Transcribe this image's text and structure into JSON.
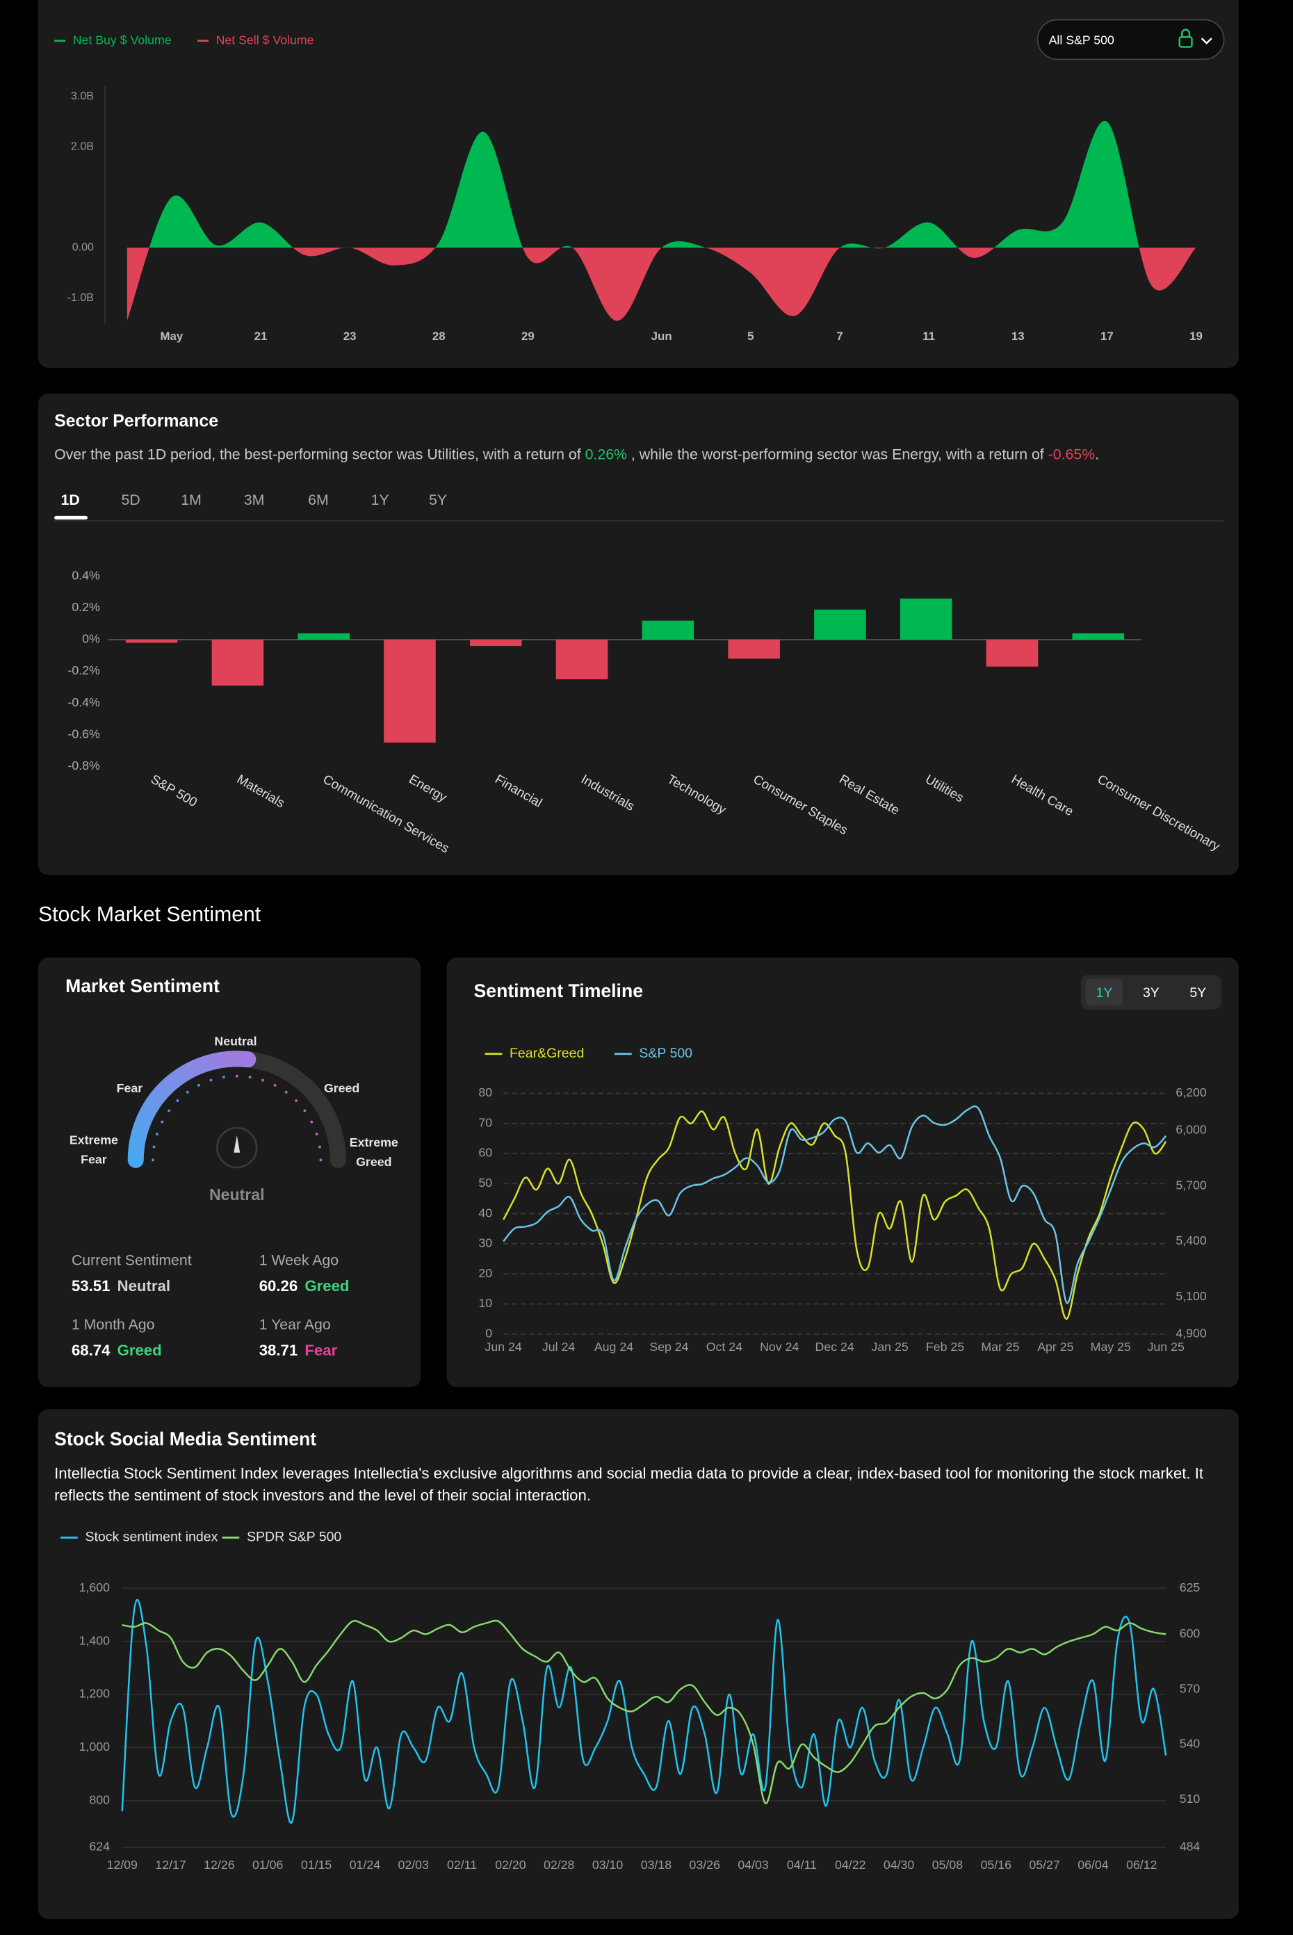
{
  "ui": {
    "dropdown": "All S&P 500",
    "section_title": "Stock Market Sentiment"
  },
  "chart_data": [
    {
      "type": "area",
      "legend": [
        {
          "name": "Net Buy $ Volume",
          "color": "#00b852"
        },
        {
          "name": "Net Sell $ Volume",
          "color": "#e04358"
        }
      ],
      "categories": [
        null,
        "May",
        null,
        "21",
        null,
        "23",
        null,
        "28",
        null,
        "29",
        null,
        null,
        "Jun",
        null,
        "5",
        null,
        "7",
        null,
        "11",
        null,
        "13",
        null,
        "17",
        null,
        "19"
      ],
      "values": [
        -1.45,
        1.0,
        0.05,
        0.5,
        -0.15,
        0,
        -0.35,
        0.1,
        2.3,
        -0.2,
        0,
        -1.45,
        0,
        0,
        -0.5,
        -1.35,
        0,
        0,
        0.5,
        -0.2,
        0.35,
        0.5,
        2.5,
        -0.75,
        0
      ],
      "ylim": [
        -1.5,
        3.2
      ],
      "yticks": [
        {
          "value": 3,
          "label": "3.0B"
        },
        {
          "value": 2,
          "label": "2.0B"
        },
        {
          "value": 0,
          "label": "0.00"
        },
        {
          "value": -1,
          "label": "-1.0B"
        }
      ]
    },
    {
      "type": "bar",
      "title": "Sector Performance",
      "description": [
        {
          "text": "Over the past 1D period, the best-performing sector was Utilities, with a return of "
        },
        {
          "text": "0.26%",
          "color": "#1ec26a"
        },
        {
          "text": " , while the worst-performing sector was Energy, with a return of "
        },
        {
          "text": "-0.65%",
          "color": "#e04358"
        },
        {
          "text": "."
        }
      ],
      "tabs": [
        "1D",
        "5D",
        "1M",
        "3M",
        "6M",
        "1Y",
        "5Y"
      ],
      "active_tab": "1D",
      "categories": [
        "S&P 500",
        "Materials",
        "Communication Services",
        "Energy",
        "Financial",
        "Industrials",
        "Technology",
        "Consumer Staples",
        "Real Estate",
        "Utilities",
        "Health Care",
        "Consumer Discretionary"
      ],
      "values": [
        -0.02,
        -0.29,
        0.04,
        -0.65,
        -0.04,
        -0.25,
        0.12,
        -0.12,
        0.19,
        0.26,
        -0.17,
        0.04
      ],
      "positive_color": "#00b852",
      "negative_color": "#e04358",
      "ylim": [
        -0.8,
        0.4
      ],
      "yticks": [
        {
          "value": 0.4,
          "label": "0.4%"
        },
        {
          "value": 0.2,
          "label": "0.2%"
        },
        {
          "value": 0,
          "label": "0%"
        },
        {
          "value": -0.2,
          "label": "-0.2%"
        },
        {
          "value": -0.4,
          "label": "-0.4%"
        },
        {
          "value": -0.6,
          "label": "-0.6%"
        },
        {
          "value": -0.8,
          "label": "-0.8%"
        }
      ]
    },
    {
      "type": "gauge",
      "title": "Market Sentiment",
      "lim": [
        0,
        100
      ],
      "zones": [
        "Extreme Fear",
        "Fear",
        "Neutral",
        "Greed",
        "Extreme Greed"
      ],
      "reading": "Neutral",
      "stats": [
        {
          "label": "Current Sentiment",
          "value": 53.51,
          "status": "Neutral",
          "color": "#cfcfcf"
        },
        {
          "label": "1 Week Ago",
          "value": 60.26,
          "status": "Greed",
          "color": "#3fd27a"
        },
        {
          "label": "1 Month Ago",
          "value": 68.74,
          "status": "Greed",
          "color": "#3fd27a"
        },
        {
          "label": "1 Year Ago",
          "value": 38.71,
          "status": "Fear",
          "color": "#e8409a"
        }
      ]
    },
    {
      "type": "line",
      "title": "Sentiment Timeline",
      "ranges": [
        "1Y",
        "3Y",
        "5Y"
      ],
      "active_range": "1Y",
      "grid": "dashed",
      "categories": [
        "Jun 24",
        null,
        null,
        null,
        null,
        "Jul 24",
        null,
        null,
        null,
        null,
        "Aug 24",
        null,
        null,
        null,
        null,
        "Sep 24",
        null,
        null,
        null,
        null,
        "Oct 24",
        null,
        null,
        null,
        null,
        "Nov 24",
        null,
        null,
        null,
        null,
        "Dec 24",
        null,
        null,
        null,
        null,
        "Jan 25",
        null,
        null,
        null,
        null,
        "Feb 25",
        null,
        null,
        null,
        null,
        "Mar 25",
        null,
        null,
        null,
        null,
        "Apr 25",
        null,
        null,
        null,
        null,
        "May 25",
        null,
        null,
        null,
        null,
        "Jun 25"
      ],
      "series": [
        {
          "name": "Fear&Greed",
          "color": "#d8e02a",
          "values": [
            38,
            45,
            52,
            48,
            55,
            50,
            58,
            47,
            40,
            30,
            17,
            25,
            38,
            52,
            58,
            62,
            72,
            70,
            74,
            68,
            72,
            60,
            55,
            68,
            50,
            62,
            70,
            66,
            63,
            70,
            66,
            60,
            28,
            22,
            40,
            35,
            44,
            24,
            46,
            38,
            44,
            46,
            48,
            42,
            35,
            15,
            20,
            22,
            30,
            25,
            18,
            5,
            20,
            32,
            40,
            52,
            62,
            70,
            68,
            60,
            64
          ]
        },
        {
          "name": "S&P 500",
          "color": "#6cc4e8",
          "axis": "y2",
          "values": [
            5400,
            5470,
            5480,
            5500,
            5560,
            5590,
            5640,
            5520,
            5460,
            5440,
            5190,
            5360,
            5520,
            5600,
            5620,
            5540,
            5660,
            5700,
            5710,
            5740,
            5760,
            5800,
            5850,
            5810,
            5720,
            5780,
            6000,
            5950,
            5960,
            5990,
            6060,
            6050,
            5880,
            5930,
            5880,
            5920,
            5850,
            6020,
            6080,
            6040,
            6030,
            6060,
            6110,
            6120,
            5970,
            5850,
            5620,
            5700,
            5660,
            5520,
            5440,
            5070,
            5280,
            5400,
            5530,
            5680,
            5830,
            5900,
            5930,
            5910,
            5970
          ]
        }
      ],
      "ylim": [
        0,
        80
      ],
      "yticks": [
        0,
        10,
        20,
        30,
        40,
        50,
        60,
        70,
        80
      ],
      "y2lim": [
        4900,
        6200
      ],
      "y2ticks": [
        {
          "value": 4900,
          "label": "4,900"
        },
        {
          "value": 5100,
          "label": "5,100"
        },
        {
          "value": 5400,
          "label": "5,400"
        },
        {
          "value": 5700,
          "label": "5,700"
        },
        {
          "value": 6000,
          "label": "6,000"
        },
        {
          "value": 6200,
          "label": "6,200"
        }
      ]
    },
    {
      "type": "line",
      "title": "Stock Social Media Sentiment",
      "grid": "solid",
      "description": "Intellectia Stock Sentiment Index leverages Intellectia's exclusive algorithms and social media data to provide a clear, index-based tool for monitoring the stock market. It reflects the sentiment of stock investors and the level of their social interaction.",
      "categories": [
        "12/09",
        null,
        null,
        null,
        "12/17",
        null,
        null,
        null,
        "12/26",
        null,
        null,
        null,
        "01/06",
        null,
        null,
        null,
        "01/15",
        null,
        null,
        null,
        "01/24",
        null,
        null,
        null,
        "02/03",
        null,
        null,
        null,
        "02/11",
        null,
        null,
        null,
        "02/20",
        null,
        null,
        null,
        "02/28",
        null,
        null,
        null,
        "03/10",
        null,
        null,
        null,
        "03/18",
        null,
        null,
        null,
        "03/26",
        null,
        null,
        null,
        "04/03",
        null,
        null,
        null,
        "04/11",
        null,
        null,
        null,
        "04/22",
        null,
        null,
        null,
        "04/30",
        null,
        null,
        null,
        "05/08",
        null,
        null,
        null,
        "05/16",
        null,
        null,
        null,
        "05/27",
        null,
        null,
        null,
        "06/04",
        null,
        null,
        null,
        "06/12",
        null,
        null
      ],
      "series": [
        {
          "name": "Stock sentiment index",
          "color": "#22c3ee",
          "values": [
            760,
            1520,
            1380,
            900,
            1100,
            1150,
            850,
            1000,
            1150,
            750,
            900,
            1400,
            1250,
            950,
            720,
            1150,
            1200,
            1050,
            1000,
            1250,
            880,
            1000,
            770,
            1050,
            1000,
            950,
            1150,
            1100,
            1280,
            1000,
            900,
            850,
            1250,
            1100,
            850,
            1300,
            1150,
            1300,
            950,
            1000,
            1100,
            1250,
            1000,
            900,
            850,
            1100,
            900,
            1150,
            1050,
            830,
            1200,
            900,
            1050,
            850,
            1480,
            1000,
            850,
            1050,
            780,
            1100,
            1000,
            1150,
            950,
            900,
            1180,
            880,
            1000,
            1150,
            1050,
            950,
            1400,
            1100,
            1000,
            1250,
            900,
            1000,
            1150,
            1000,
            880,
            1100,
            1250,
            950,
            1400,
            1470,
            1100,
            1220,
            970
          ]
        },
        {
          "name": "SPDR S&P 500",
          "color": "#86d96b",
          "axis": "y2",
          "values": [
            605,
            604,
            606,
            602,
            598,
            585,
            582,
            590,
            592,
            588,
            580,
            575,
            583,
            592,
            585,
            574,
            583,
            591,
            600,
            607,
            605,
            602,
            596,
            598,
            602,
            600,
            603,
            605,
            601,
            604,
            606,
            607,
            600,
            592,
            588,
            585,
            590,
            580,
            574,
            576,
            565,
            560,
            558,
            562,
            566,
            563,
            570,
            572,
            563,
            556,
            560,
            556,
            540,
            508,
            530,
            527,
            540,
            533,
            528,
            525,
            530,
            540,
            550,
            552,
            560,
            566,
            568,
            565,
            570,
            583,
            587,
            585,
            587,
            592,
            590,
            592,
            589,
            593,
            596,
            598,
            600,
            604,
            602,
            606,
            603,
            601,
            600
          ]
        }
      ],
      "ylim": [
        624,
        1600
      ],
      "yticks": [
        624,
        800,
        {
          "value": 1000,
          "label": "1,000"
        },
        {
          "value": 1200,
          "label": "1,200"
        },
        {
          "value": 1400,
          "label": "1,400"
        },
        {
          "value": 1600,
          "label": "1,600"
        }
      ],
      "y2lim": [
        484,
        625
      ],
      "y2ticks": [
        484,
        510,
        540,
        570,
        600,
        625
      ]
    }
  ]
}
